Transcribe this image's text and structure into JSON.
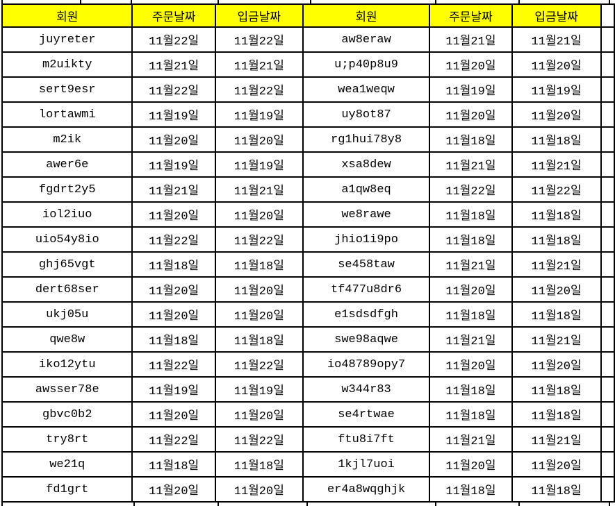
{
  "colors": {
    "header_bg": "#FFFF00",
    "grid_border": "#000000",
    "cell_text": "#000000"
  },
  "table": {
    "headers": [
      "회원",
      "주문날짜",
      "입금날짜",
      "회원",
      "주문날짜",
      "입금날짜"
    ],
    "rows": [
      {
        "cells": [
          "juyreter",
          "11월22일",
          "11월22일",
          "aw8eraw",
          "11월21일",
          "11월21일"
        ]
      },
      {
        "cells": [
          "m2uikty",
          "11월21일",
          "11월21일",
          "u;p40p8u9",
          "11월20일",
          "11월20일"
        ]
      },
      {
        "cells": [
          "sert9esr",
          "11월22일",
          "11월22일",
          "wea1weqw",
          "11월19일",
          "11월19일"
        ]
      },
      {
        "cells": [
          "lortawmi",
          "11월19일",
          "11월19일",
          "uy8ot87",
          "11월20일",
          "11월20일"
        ]
      },
      {
        "cells": [
          "m2ik",
          "11월20일",
          "11월20일",
          "rg1hui78y8",
          "11월18일",
          "11월18일"
        ]
      },
      {
        "cells": [
          "awer6e",
          "11월19일",
          "11월19일",
          "xsa8dew",
          "11월21일",
          "11월21일"
        ]
      },
      {
        "cells": [
          "fgdrt2y5",
          "11월21일",
          "11월21일",
          "a1qw8eq",
          "11월22일",
          "11월22일"
        ]
      },
      {
        "cells": [
          "iol2iuo",
          "11월20일",
          "11월20일",
          "we8rawe",
          "11월18일",
          "11월18일"
        ]
      },
      {
        "cells": [
          "uio54y8io",
          "11월22일",
          "11월22일",
          "jhio1i9po",
          "11월18일",
          "11월18일"
        ]
      },
      {
        "cells": [
          "ghj65vgt",
          "11월18일",
          "11월18일",
          "se458taw",
          "11월21일",
          "11월21일"
        ]
      },
      {
        "cells": [
          "dert68ser",
          "11월20일",
          "11월20일",
          "tf477u8dr6",
          "11월20일",
          "11월20일"
        ]
      },
      {
        "cells": [
          "ukj05u",
          "11월20일",
          "11월20일",
          "e1sdsdfgh",
          "11월18일",
          "11월18일"
        ]
      },
      {
        "cells": [
          "qwe8w",
          "11월18일",
          "11월18일",
          "swe98aqwe",
          "11월21일",
          "11월21일"
        ]
      },
      {
        "cells": [
          "iko12ytu",
          "11월22일",
          "11월22일",
          "io48789opy7",
          "11월20일",
          "11월20일"
        ]
      },
      {
        "cells": [
          "awsser78e",
          "11월19일",
          "11월19일",
          "w344r83",
          "11월18일",
          "11월18일"
        ]
      },
      {
        "cells": [
          "gbvc0b2",
          "11월20일",
          "11월20일",
          "se4rtwae",
          "11월18일",
          "11월18일"
        ]
      },
      {
        "cells": [
          "try8rt",
          "11월22일",
          "11월22일",
          "ftu8i7ft",
          "11월21일",
          "11월21일"
        ]
      },
      {
        "cells": [
          "we21q",
          "11월18일",
          "11월18일",
          "1kjl7uoi",
          "11월20일",
          "11월20일"
        ]
      },
      {
        "cells": [
          "fd1grt",
          "11월20일",
          "11월20일",
          "er4a8wqghjk",
          "11월18일",
          "11월18일"
        ]
      }
    ]
  }
}
